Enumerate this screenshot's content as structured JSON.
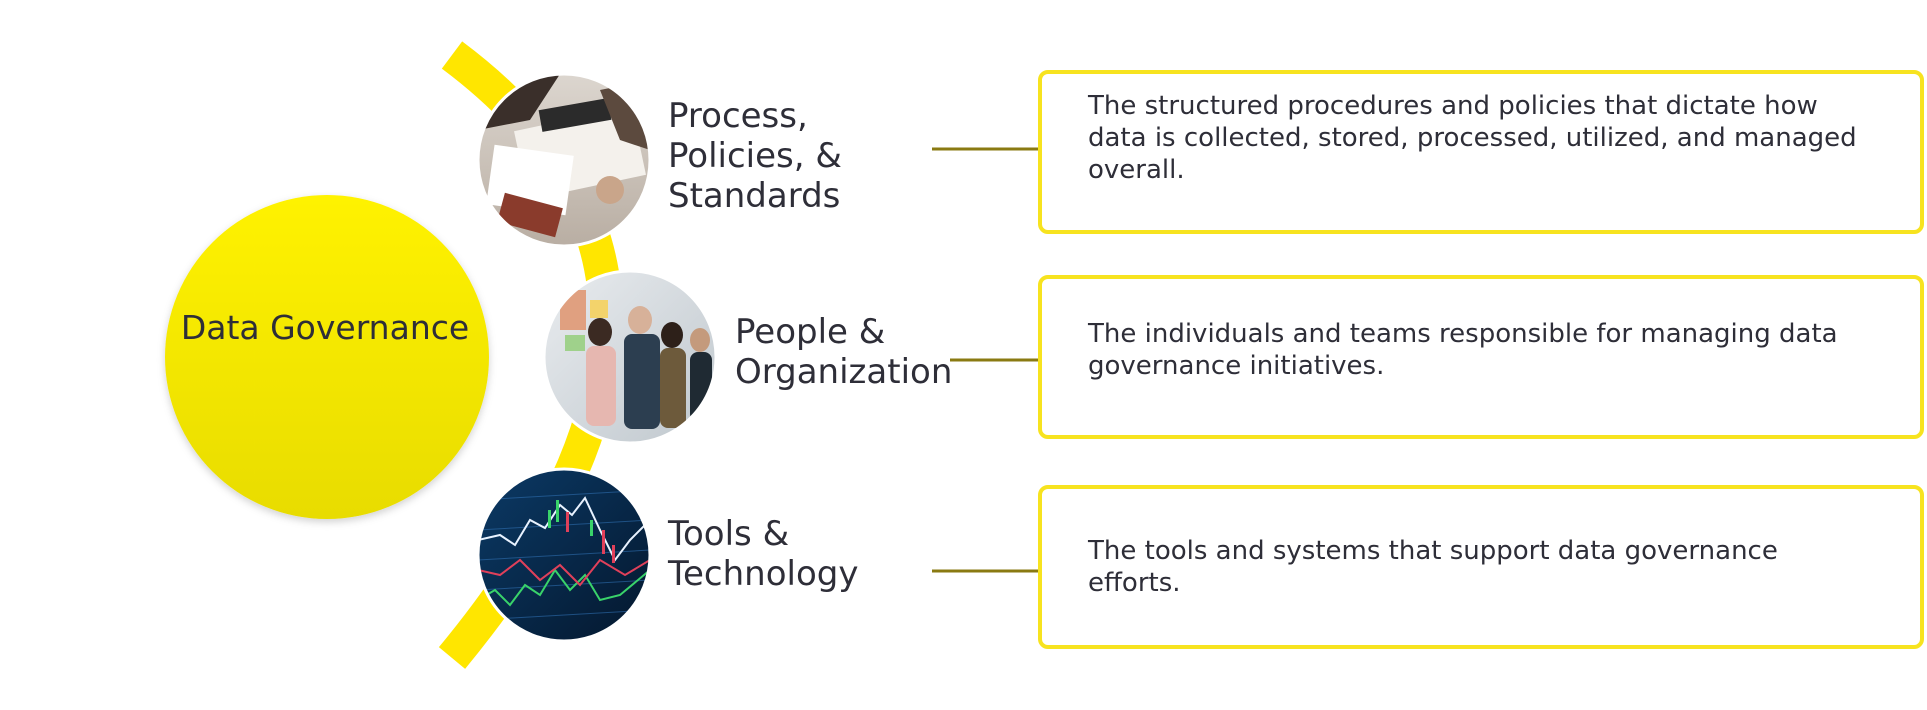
{
  "hub": {
    "title": "Data Governance"
  },
  "pillars": [
    {
      "title": "Process, Policies, & Standards",
      "lines": [
        "Process,",
        "Policies, &",
        "Standards"
      ],
      "image": "business-meeting-photo",
      "description": "The structured procedures and policies that dictate how data is collected, stored, processed, utilized, and managed overall."
    },
    {
      "title": "People & Organization",
      "lines": [
        "People &",
        "Organization"
      ],
      "image": "team-discussion-photo",
      "description": "The individuals and teams responsible for managing data governance initiatives."
    },
    {
      "title": "Tools & Technology",
      "lines": [
        "Tools &",
        "Technology"
      ],
      "image": "stock-chart-screen-photo",
      "description": "The tools and systems that support data governance efforts."
    }
  ],
  "colors": {
    "accent_yellow": "#ffe600",
    "border_yellow": "#f7e31f",
    "connector": "#8a7a12",
    "text": "#2e2e38"
  }
}
